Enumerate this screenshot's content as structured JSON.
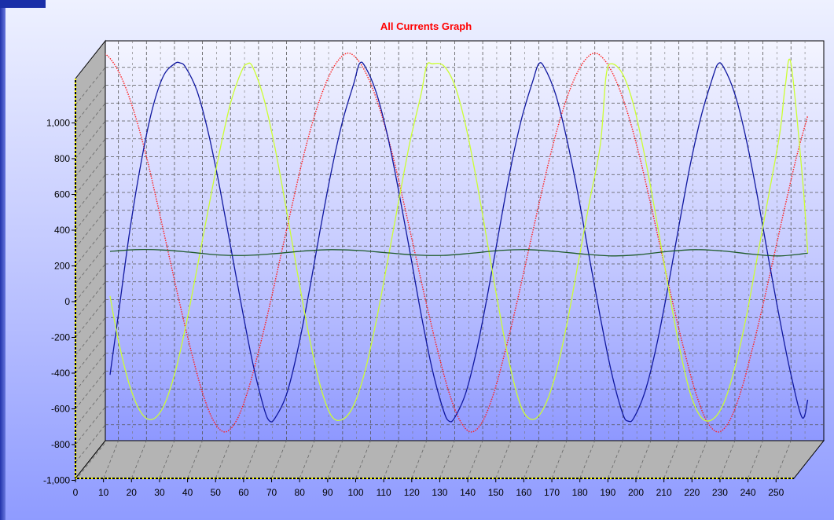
{
  "chart_data": {
    "type": "line",
    "title": "All Currents Graph",
    "xlabel": "",
    "ylabel": "",
    "xlim": [
      0,
      258
    ],
    "ylim": [
      -1000,
      1180
    ],
    "x_ticks": [
      "0",
      "10",
      "20",
      "30",
      "40",
      "50",
      "60",
      "70",
      "80",
      "90",
      "100",
      "110",
      "120",
      "130",
      "140",
      "150",
      "160",
      "170",
      "180",
      "190",
      "200",
      "210",
      "220",
      "230",
      "240",
      "250"
    ],
    "y_ticks": [
      "1,000",
      "800",
      "600",
      "400",
      "200",
      "0",
      "-200",
      "-400",
      "-600",
      "-800",
      "-1,000"
    ],
    "y_tick_values": [
      1000,
      800,
      600,
      400,
      200,
      0,
      -200,
      -400,
      -600,
      -800,
      -1000
    ],
    "grid": true,
    "legend": "none",
    "series": [
      {
        "color": "#ff2020",
        "style": "dotted",
        "x": [
          0,
          4,
          8,
          12,
          16,
          20,
          24,
          28,
          32,
          36,
          40,
          44,
          48,
          52,
          56,
          60,
          64,
          68,
          72,
          76,
          80,
          84,
          88,
          92,
          96,
          100,
          104,
          108,
          112,
          116,
          120,
          124,
          128,
          132,
          136,
          140,
          144,
          148,
          152,
          156,
          160,
          164,
          168,
          172,
          176,
          180,
          184,
          188,
          192,
          196,
          200,
          204,
          208,
          212,
          216,
          220,
          224,
          228,
          232,
          236,
          240,
          244,
          248,
          252,
          256
        ],
        "y": [
          1120,
          1180,
          1130,
          1010,
          830,
          600,
          330,
          50,
          -230,
          -490,
          -720,
          -880,
          -940,
          -880,
          -720,
          -490,
          -230,
          50,
          330,
          600,
          830,
          1010,
          1130,
          1180,
          1130,
          1010,
          830,
          600,
          330,
          50,
          -230,
          -490,
          -720,
          -880,
          -940,
          -880,
          -720,
          -490,
          -230,
          50,
          330,
          600,
          830,
          1010,
          1130,
          1180,
          1130,
          1010,
          830,
          600,
          330,
          50,
          -230,
          -490,
          -720,
          -880,
          -940,
          -880,
          -720,
          -490,
          -230,
          50,
          330,
          600,
          830
        ]
      },
      {
        "color": "#1018a0",
        "style": "solid",
        "x": [
          7,
          10,
          14,
          18,
          22,
          26,
          30,
          32,
          34,
          38,
          42,
          46,
          50,
          54,
          58,
          62,
          64,
          66,
          70,
          74,
          78,
          82,
          86,
          90,
          94,
          96,
          98,
          102,
          106,
          110,
          114,
          118,
          122,
          126,
          128,
          130,
          134,
          138,
          142,
          146,
          150,
          154,
          158,
          160,
          162,
          166,
          170,
          174,
          178,
          182,
          186,
          190,
          192,
          194,
          198,
          202,
          206,
          210,
          214,
          218,
          222,
          224,
          226,
          230,
          234,
          238,
          242,
          246,
          250,
          254,
          256
        ],
        "y": [
          -620,
          -280,
          180,
          560,
          860,
          1050,
          1120,
          1125,
          1100,
          970,
          740,
          440,
          100,
          -240,
          -560,
          -810,
          -880,
          -860,
          -730,
          -480,
          -160,
          190,
          520,
          800,
          1010,
          1120,
          1105,
          960,
          720,
          410,
          70,
          -280,
          -590,
          -820,
          -880,
          -860,
          -720,
          -470,
          -150,
          200,
          540,
          820,
          1030,
          1120,
          1100,
          950,
          700,
          390,
          40,
          -300,
          -610,
          -840,
          -880,
          -860,
          -710,
          -460,
          -140,
          210,
          550,
          830,
          1040,
          1120,
          1100,
          950,
          700,
          380,
          30,
          -310,
          -620,
          -860,
          -760
        ]
      },
      {
        "color": "#ccff33",
        "style": "solid",
        "x": [
          7,
          10,
          14,
          18,
          22,
          26,
          30,
          34,
          38,
          42,
          46,
          50,
          54,
          56,
          58,
          62,
          66,
          70,
          74,
          78,
          82,
          86,
          90,
          94,
          98,
          102,
          106,
          110,
          114,
          118,
          120,
          122,
          126,
          130,
          134,
          138,
          142,
          146,
          150,
          154,
          158,
          162,
          166,
          170,
          174,
          178,
          182,
          184,
          186,
          190,
          194,
          198,
          202,
          206,
          210,
          214,
          218,
          222,
          226,
          230,
          234,
          238,
          242,
          246,
          248,
          250,
          254,
          256
        ],
        "y": [
          -180,
          -430,
          -680,
          -830,
          -870,
          -800,
          -620,
          -350,
          -30,
          300,
          620,
          900,
          1080,
          1120,
          1100,
          920,
          640,
          300,
          -60,
          -400,
          -680,
          -850,
          -870,
          -790,
          -600,
          -320,
          10,
          350,
          680,
          950,
          1110,
          1120,
          1110,
          1000,
          770,
          450,
          90,
          -270,
          -590,
          -810,
          -870,
          -800,
          -620,
          -340,
          0,
          340,
          670,
          1050,
          1120,
          1060,
          880,
          590,
          250,
          -110,
          -450,
          -720,
          -860,
          -870,
          -780,
          -580,
          -300,
          40,
          380,
          730,
          1000,
          1120,
          500,
          60
        ]
      },
      {
        "color": "#1e5a2a",
        "style": "solid",
        "x": [
          7,
          16,
          26,
          36,
          46,
          56,
          66,
          76,
          86,
          96,
          106,
          116,
          126,
          136,
          146,
          156,
          166,
          176,
          186,
          196,
          206,
          216,
          226,
          236,
          246,
          256
        ],
        "y": [
          70,
          80,
          78,
          65,
          50,
          48,
          58,
          72,
          80,
          75,
          62,
          50,
          48,
          60,
          75,
          80,
          70,
          55,
          45,
          52,
          70,
          80,
          72,
          55,
          45,
          60
        ]
      }
    ]
  }
}
